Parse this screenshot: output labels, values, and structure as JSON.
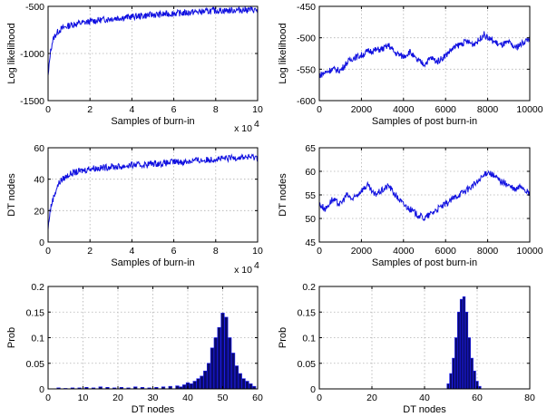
{
  "chart_data": [
    {
      "type": "line",
      "id": "p1",
      "xlabel": "Samples of burn-in",
      "ylabel": "Log likelihood",
      "xlim": [
        0,
        100000
      ],
      "ylim": [
        -1500,
        -500
      ],
      "xtick_values": [
        0,
        20000,
        40000,
        60000,
        80000,
        100000
      ],
      "xticks": [
        "0",
        "2",
        "4",
        "6",
        "8",
        "10"
      ],
      "yticks": [
        "-1500",
        "-1000",
        "-500"
      ],
      "exponent_label": {
        "base": "x 10",
        "power": "4"
      },
      "grid": true,
      "series": [
        {
          "x": [
            0,
            500,
            1000,
            2000,
            3000,
            4000,
            5000,
            6000,
            8000,
            10000,
            12000,
            15000,
            18000,
            20000,
            25000,
            30000,
            35000,
            40000,
            45000,
            50000,
            55000,
            60000,
            65000,
            70000,
            75000,
            80000,
            85000,
            90000,
            95000,
            100000
          ],
          "y": [
            -1250,
            -1130,
            -1000,
            -880,
            -820,
            -790,
            -760,
            -745,
            -720,
            -705,
            -690,
            -680,
            -670,
            -660,
            -645,
            -630,
            -620,
            -610,
            -600,
            -590,
            -585,
            -575,
            -570,
            -560,
            -555,
            -545,
            -545,
            -540,
            -535,
            -540
          ]
        }
      ]
    },
    {
      "type": "line",
      "id": "p2",
      "xlabel": "Samples of post burn-in",
      "ylabel": "Log likelihood",
      "xlim": [
        0,
        10000
      ],
      "ylim": [
        -600,
        -450
      ],
      "xticks": [
        "0",
        "2000",
        "4000",
        "6000",
        "8000",
        "10000"
      ],
      "yticks": [
        "-600",
        "-550",
        "-500",
        "-450"
      ],
      "grid": true,
      "series": [
        {
          "x": [
            0,
            300,
            600,
            1000,
            1300,
            1600,
            2000,
            2300,
            2600,
            3000,
            3300,
            3600,
            4000,
            4300,
            4600,
            5000,
            5300,
            5600,
            6000,
            6300,
            6600,
            7000,
            7300,
            7600,
            7800,
            8000,
            8300,
            8600,
            9000,
            9300,
            9600,
            10000
          ],
          "y": [
            -560,
            -555,
            -550,
            -552,
            -540,
            -532,
            -528,
            -522,
            -520,
            -518,
            -512,
            -524,
            -530,
            -522,
            -535,
            -542,
            -532,
            -538,
            -528,
            -518,
            -512,
            -506,
            -510,
            -504,
            -494,
            -500,
            -506,
            -512,
            -508,
            -516,
            -510,
            -500
          ]
        }
      ]
    },
    {
      "type": "line",
      "id": "p3",
      "xlabel": "Samples of burn-in",
      "ylabel": "DT nodes",
      "xlim": [
        0,
        100000
      ],
      "ylim": [
        0,
        60
      ],
      "xtick_values": [
        0,
        20000,
        40000,
        60000,
        80000,
        100000
      ],
      "xticks": [
        "0",
        "2",
        "4",
        "6",
        "8",
        "10"
      ],
      "yticks": [
        "0",
        "20",
        "40",
        "60"
      ],
      "exponent_label": {
        "base": "x 10",
        "power": "4"
      },
      "grid": true,
      "series": [
        {
          "x": [
            0,
            500,
            1000,
            2000,
            3000,
            4000,
            5000,
            6000,
            8000,
            10000,
            12000,
            15000,
            18000,
            20000,
            25000,
            30000,
            35000,
            40000,
            45000,
            50000,
            55000,
            60000,
            65000,
            70000,
            75000,
            80000,
            85000,
            90000,
            95000,
            100000
          ],
          "y": [
            8,
            15,
            20,
            26,
            30,
            34,
            37,
            39,
            41,
            43,
            44,
            45,
            46,
            47,
            47,
            48,
            48,
            49,
            49,
            50,
            50,
            51,
            51,
            52,
            52,
            53,
            53,
            54,
            54,
            54
          ]
        }
      ]
    },
    {
      "type": "line",
      "id": "p4",
      "xlabel": "Samples of post burn-in",
      "ylabel": "DT nodes",
      "xlim": [
        0,
        10000
      ],
      "ylim": [
        45,
        65
      ],
      "xticks": [
        "0",
        "2000",
        "4000",
        "6000",
        "8000",
        "10000"
      ],
      "yticks": [
        "45",
        "50",
        "55",
        "60",
        "65"
      ],
      "grid": true,
      "series": [
        {
          "x": [
            0,
            300,
            600,
            1000,
            1300,
            1600,
            2000,
            2300,
            2600,
            3000,
            3300,
            3600,
            4000,
            4300,
            4600,
            5000,
            5300,
            5600,
            6000,
            6300,
            6600,
            7000,
            7300,
            7600,
            7800,
            8000,
            8300,
            8600,
            9000,
            9300,
            9600,
            10000
          ],
          "y": [
            53,
            52,
            54,
            53,
            55,
            54,
            56,
            57,
            55,
            56,
            57,
            55,
            53,
            52,
            51,
            50,
            51,
            52,
            53,
            54,
            55,
            56,
            57,
            58,
            59,
            60,
            59,
            58,
            57,
            56,
            57,
            55
          ]
        }
      ]
    },
    {
      "type": "bar",
      "id": "p5",
      "xlabel": "DT nodes",
      "ylabel": "Prob",
      "xlim": [
        0,
        60
      ],
      "ylim": [
        0,
        0.2
      ],
      "xticks": [
        "0",
        "10",
        "20",
        "30",
        "40",
        "50",
        "60"
      ],
      "yticks": [
        "0",
        "0.05",
        "0.1",
        "0.15",
        "0.2"
      ],
      "grid": true,
      "categories": [
        3,
        5,
        7,
        9,
        11,
        13,
        15,
        17,
        19,
        21,
        23,
        25,
        27,
        29,
        31,
        33,
        35,
        37,
        38,
        39,
        40,
        41,
        42,
        43,
        44,
        45,
        46,
        47,
        48,
        49,
        50,
        51,
        52,
        53,
        54,
        55,
        56,
        57,
        58,
        59
      ],
      "values": [
        0.002,
        0.001,
        0.002,
        0.002,
        0.003,
        0.002,
        0.004,
        0.003,
        0.002,
        0.003,
        0.002,
        0.004,
        0.003,
        0.002,
        0.003,
        0.004,
        0.005,
        0.006,
        0.004,
        0.008,
        0.012,
        0.01,
        0.015,
        0.02,
        0.025,
        0.035,
        0.05,
        0.08,
        0.1,
        0.12,
        0.148,
        0.14,
        0.1,
        0.07,
        0.045,
        0.03,
        0.02,
        0.015,
        0.01,
        0.005
      ]
    },
    {
      "type": "bar",
      "id": "p6",
      "xlabel": "DT nodes",
      "ylabel": "Prob",
      "xlim": [
        0,
        80
      ],
      "ylim": [
        0,
        0.2
      ],
      "xticks": [
        "0",
        "20",
        "40",
        "60",
        "80"
      ],
      "yticks": [
        "0",
        "0.05",
        "0.1",
        "0.15",
        "0.2"
      ],
      "grid": true,
      "categories": [
        49,
        50,
        51,
        52,
        53,
        54,
        55,
        56,
        57,
        58,
        59,
        60,
        61
      ],
      "values": [
        0.01,
        0.03,
        0.06,
        0.1,
        0.15,
        0.175,
        0.18,
        0.15,
        0.1,
        0.06,
        0.035,
        0.015,
        0.005
      ]
    }
  ],
  "colors": {
    "line": "#1010e0",
    "bar_fill": "#0a0a6a",
    "bar_edge": "#1f1fff",
    "grid": "#b0b0b0"
  }
}
